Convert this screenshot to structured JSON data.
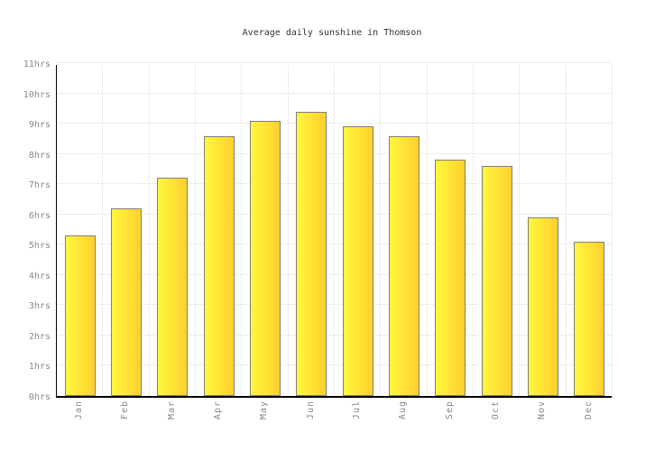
{
  "chart_data": {
    "type": "bar",
    "title": "Average daily sunshine in Thomson",
    "categories": [
      "Jan",
      "Feb",
      "Mar",
      "Apr",
      "May",
      "Jun",
      "Jul",
      "Aug",
      "Sep",
      "Oct",
      "Nov",
      "Dec"
    ],
    "values": [
      5.3,
      6.2,
      7.2,
      8.6,
      9.1,
      9.4,
      8.9,
      8.6,
      7.8,
      7.6,
      5.9,
      5.1
    ],
    "unit": "hrs",
    "y_ticks": [
      "0hrs",
      "1hrs",
      "2hrs",
      "3hrs",
      "4hrs",
      "5hrs",
      "6hrs",
      "7hrs",
      "8hrs",
      "9hrs",
      "10hrs",
      "11hrs"
    ],
    "ylim": [
      0,
      11
    ],
    "xlabel": "",
    "ylabel": "",
    "grid": true,
    "legend_position": "none",
    "colors": {
      "bar_gradient_left": "#fff73d",
      "bar_gradient_right": "#ffd02e",
      "bar_border": "#7f7f7f",
      "axis": "#000000",
      "grid_line": "#ededed",
      "tick_label": "#888888",
      "title": "#333333",
      "background": "#ffffff"
    }
  }
}
